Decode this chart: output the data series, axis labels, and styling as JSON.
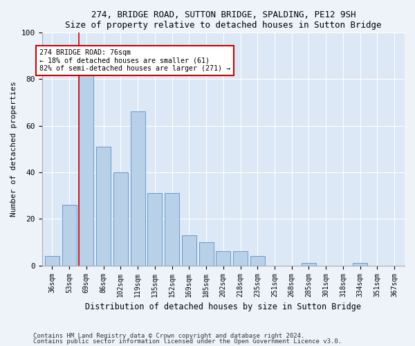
{
  "title1": "274, BRIDGE ROAD, SUTTON BRIDGE, SPALDING, PE12 9SH",
  "title2": "Size of property relative to detached houses in Sutton Bridge",
  "xlabel": "Distribution of detached houses by size in Sutton Bridge",
  "ylabel": "Number of detached properties",
  "categories": [
    "36sqm",
    "53sqm",
    "69sqm",
    "86sqm",
    "102sqm",
    "119sqm",
    "135sqm",
    "152sqm",
    "169sqm",
    "185sqm",
    "202sqm",
    "218sqm",
    "235sqm",
    "251sqm",
    "268sqm",
    "285sqm",
    "301sqm",
    "318sqm",
    "334sqm",
    "351sqm",
    "367sqm"
  ],
  "values": [
    4,
    26,
    84,
    51,
    40,
    66,
    31,
    31,
    13,
    10,
    6,
    6,
    4,
    0,
    0,
    1,
    0,
    0,
    1,
    0,
    0
  ],
  "bar_color": "#b8d0e8",
  "bar_edge_color": "#6699cc",
  "highlight_index": 2,
  "highlight_line_color": "#cc0000",
  "annotation_text": "274 BRIDGE ROAD: 76sqm\n← 18% of detached houses are smaller (61)\n82% of semi-detached houses are larger (271) →",
  "annotation_box_color": "#ffffff",
  "annotation_box_edge": "#cc0000",
  "ylim": [
    0,
    100
  ],
  "yticks": [
    0,
    20,
    40,
    60,
    80,
    100
  ],
  "bg_color": "#dce8f5",
  "fig_color": "#eef3fa",
  "footer1": "Contains HM Land Registry data © Crown copyright and database right 2024.",
  "footer2": "Contains public sector information licensed under the Open Government Licence v3.0."
}
